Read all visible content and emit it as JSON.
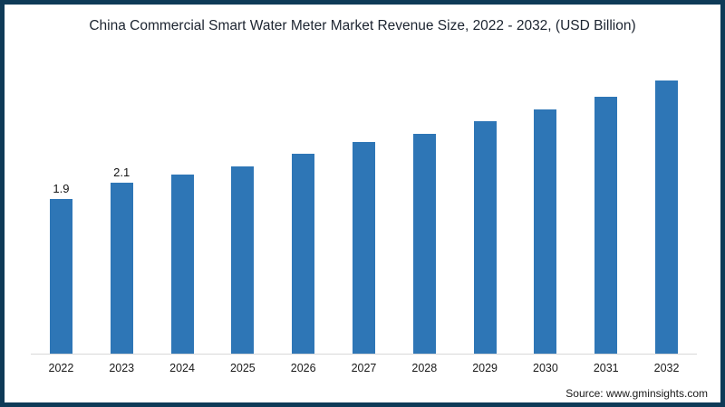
{
  "page": {
    "title": "China Commercial Smart Water Meter Market Revenue Size, 2022 - 2032, (USD Billion)"
  },
  "source": {
    "text": "Source: www.gminsights.com"
  },
  "colors": {
    "bar": "#2E76B6",
    "frame_border": "#0E3A57",
    "axis_line": "#D8D8D8",
    "text": "#1A1A1A"
  },
  "chart_data": {
    "type": "bar",
    "title": "China Commercial Smart Water Meter Market Revenue Size, 2022 - 2032, (USD Billion)",
    "categories": [
      "2022",
      "2023",
      "2024",
      "2025",
      "2026",
      "2027",
      "2028",
      "2029",
      "2030",
      "2031",
      "2032"
    ],
    "values": [
      1.9,
      2.1,
      2.2,
      2.3,
      2.45,
      2.6,
      2.7,
      2.85,
      3.0,
      3.15,
      3.35
    ],
    "data_labels": [
      "1.9",
      "2.1",
      "",
      "",
      "",
      "",
      "",
      "",
      "",
      "",
      ""
    ],
    "xlabel": "",
    "ylabel": "",
    "ylim": [
      0,
      3.6
    ],
    "grid": false,
    "legend": false,
    "bar_color": "#2E76B6",
    "units": "USD Billion"
  }
}
